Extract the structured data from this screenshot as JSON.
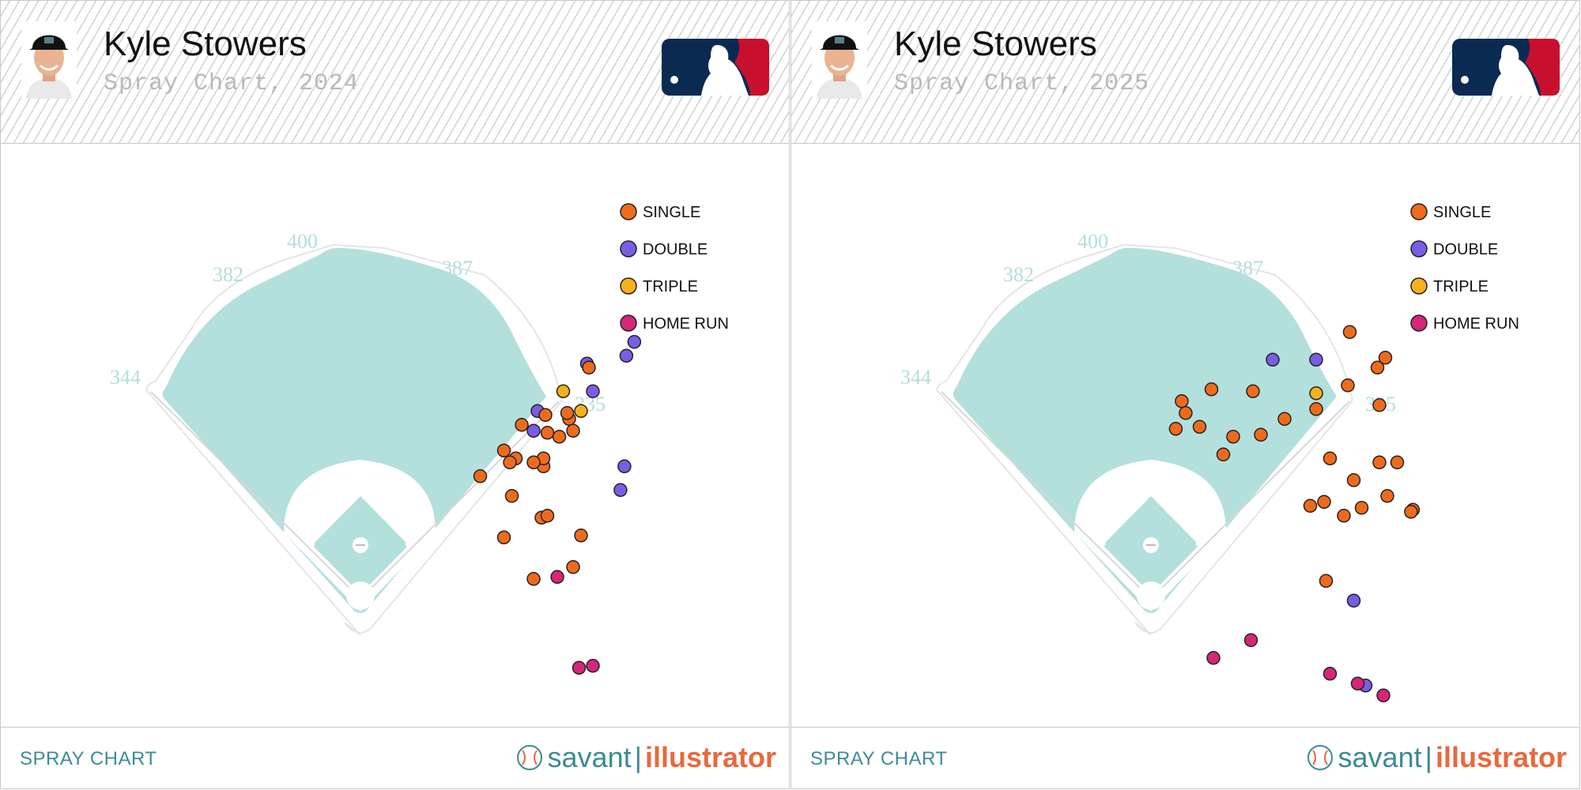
{
  "colors": {
    "single": "#f06a1b",
    "double": "#7b5ce6",
    "triple": "#f5b11b",
    "home_run": "#d6267a",
    "field": "#b3dfdc",
    "mlb_blue": "#0b2a52",
    "mlb_red": "#c8102e"
  },
  "legend": {
    "single": "SINGLE",
    "double": "DOUBLE",
    "triple": "TRIPLE",
    "home_run": "HOME RUN"
  },
  "footer": {
    "label": "SPRAY CHART",
    "brand_savant": "savant",
    "brand_sep": "|",
    "brand_illustrator": "illustrator"
  },
  "fence": {
    "left": "344",
    "left_center": "382",
    "center": "400",
    "right_center": "387",
    "right": "335"
  },
  "chart_data": [
    {
      "type": "scatter",
      "player": "Kyle Stowers",
      "title": "Spray Chart, 2024",
      "points": [
        {
          "x": 215,
          "y": 104,
          "result": "double"
        },
        {
          "x": 260,
          "y": 76,
          "result": "double"
        },
        {
          "x": 228,
          "y": 94,
          "result": "triple"
        },
        {
          "x": 231,
          "y": 108,
          "result": "single"
        },
        {
          "x": 226,
          "y": 117,
          "result": "single"
        },
        {
          "x": 207,
          "y": 111,
          "result": "single"
        },
        {
          "x": 220,
          "y": 115,
          "result": "single"
        },
        {
          "x": 218,
          "y": 132,
          "result": "single"
        },
        {
          "x": 204,
          "y": 128,
          "result": "single"
        },
        {
          "x": 198,
          "y": 124,
          "result": "single"
        },
        {
          "x": 201,
          "y": 130,
          "result": "single"
        },
        {
          "x": 233,
          "y": 114,
          "result": "single"
        },
        {
          "x": 213,
          "y": 189,
          "result": "single"
        },
        {
          "x": 218,
          "y": 128,
          "result": "single"
        },
        {
          "x": 237,
          "y": 167,
          "result": "single"
        },
        {
          "x": 264,
          "y": 69,
          "result": "double"
        },
        {
          "x": 198,
          "y": 168,
          "result": "single"
        },
        {
          "x": 217,
          "y": 158,
          "result": "single"
        },
        {
          "x": 186,
          "y": 137,
          "result": "single"
        },
        {
          "x": 240,
          "y": 80,
          "result": "double"
        },
        {
          "x": 241,
          "y": 82,
          "result": "single"
        },
        {
          "x": 243,
          "y": 94,
          "result": "double"
        },
        {
          "x": 233,
          "y": 183,
          "result": "single"
        },
        {
          "x": 220,
          "y": 157,
          "result": "single"
        },
        {
          "x": 259,
          "y": 132,
          "result": "double"
        },
        {
          "x": 243,
          "y": 233,
          "result": "home_run"
        },
        {
          "x": 236,
          "y": 234,
          "result": "home_run"
        },
        {
          "x": 225,
          "y": 188,
          "result": "home_run"
        },
        {
          "x": 219,
          "y": 106,
          "result": "single"
        },
        {
          "x": 202,
          "y": 147,
          "result": "single"
        },
        {
          "x": 257,
          "y": 144,
          "result": "double"
        },
        {
          "x": 213,
          "y": 130,
          "result": "single"
        },
        {
          "x": 213,
          "y": 114,
          "result": "double"
        },
        {
          "x": 237,
          "y": 104,
          "result": "triple"
        },
        {
          "x": 230,
          "y": 105,
          "result": "single"
        }
      ]
    },
    {
      "type": "scatter",
      "player": "Kyle Stowers",
      "title": "Spray Chart, 2025",
      "points": [
        {
          "x": 150,
          "y": 112,
          "result": "single"
        },
        {
          "x": 141,
          "y": 99,
          "result": "single"
        },
        {
          "x": 162,
          "y": 126,
          "result": "single"
        },
        {
          "x": 138,
          "y": 113,
          "result": "single"
        },
        {
          "x": 187,
          "y": 78,
          "result": "double"
        },
        {
          "x": 193,
          "y": 108,
          "result": "single"
        },
        {
          "x": 209,
          "y": 103,
          "result": "single"
        },
        {
          "x": 216,
          "y": 128,
          "result": "single"
        },
        {
          "x": 241,
          "y": 101,
          "result": "single"
        },
        {
          "x": 241,
          "y": 130,
          "result": "single"
        },
        {
          "x": 232,
          "y": 153,
          "result": "single"
        },
        {
          "x": 250,
          "y": 130,
          "result": "single"
        },
        {
          "x": 223,
          "y": 157,
          "result": "single"
        },
        {
          "x": 214,
          "y": 190,
          "result": "single"
        },
        {
          "x": 228,
          "y": 139,
          "result": "single"
        },
        {
          "x": 181,
          "y": 116,
          "result": "single"
        },
        {
          "x": 156,
          "y": 93,
          "result": "single"
        },
        {
          "x": 143,
          "y": 105,
          "result": "single"
        },
        {
          "x": 167,
          "y": 117,
          "result": "single"
        },
        {
          "x": 245,
          "y": 147,
          "result": "single"
        },
        {
          "x": 258,
          "y": 154,
          "result": "single"
        },
        {
          "x": 257,
          "y": 155,
          "result": "single"
        },
        {
          "x": 228,
          "y": 200,
          "result": "double"
        },
        {
          "x": 209,
          "y": 78,
          "result": "double"
        },
        {
          "x": 209,
          "y": 95,
          "result": "triple"
        },
        {
          "x": 225,
          "y": 91,
          "result": "single"
        },
        {
          "x": 240,
          "y": 82,
          "result": "single"
        },
        {
          "x": 244,
          "y": 77,
          "result": "single"
        },
        {
          "x": 176,
          "y": 220,
          "result": "home_run"
        },
        {
          "x": 216,
          "y": 237,
          "result": "home_run"
        },
        {
          "x": 243,
          "y": 248,
          "result": "home_run"
        },
        {
          "x": 234,
          "y": 243,
          "result": "double"
        },
        {
          "x": 230,
          "y": 242,
          "result": "home_run"
        },
        {
          "x": 157,
          "y": 229,
          "result": "home_run"
        },
        {
          "x": 213,
          "y": 150,
          "result": "single"
        },
        {
          "x": 206,
          "y": 152,
          "result": "single"
        },
        {
          "x": 177,
          "y": 94,
          "result": "single"
        },
        {
          "x": 226,
          "y": 64,
          "result": "single"
        }
      ]
    }
  ]
}
